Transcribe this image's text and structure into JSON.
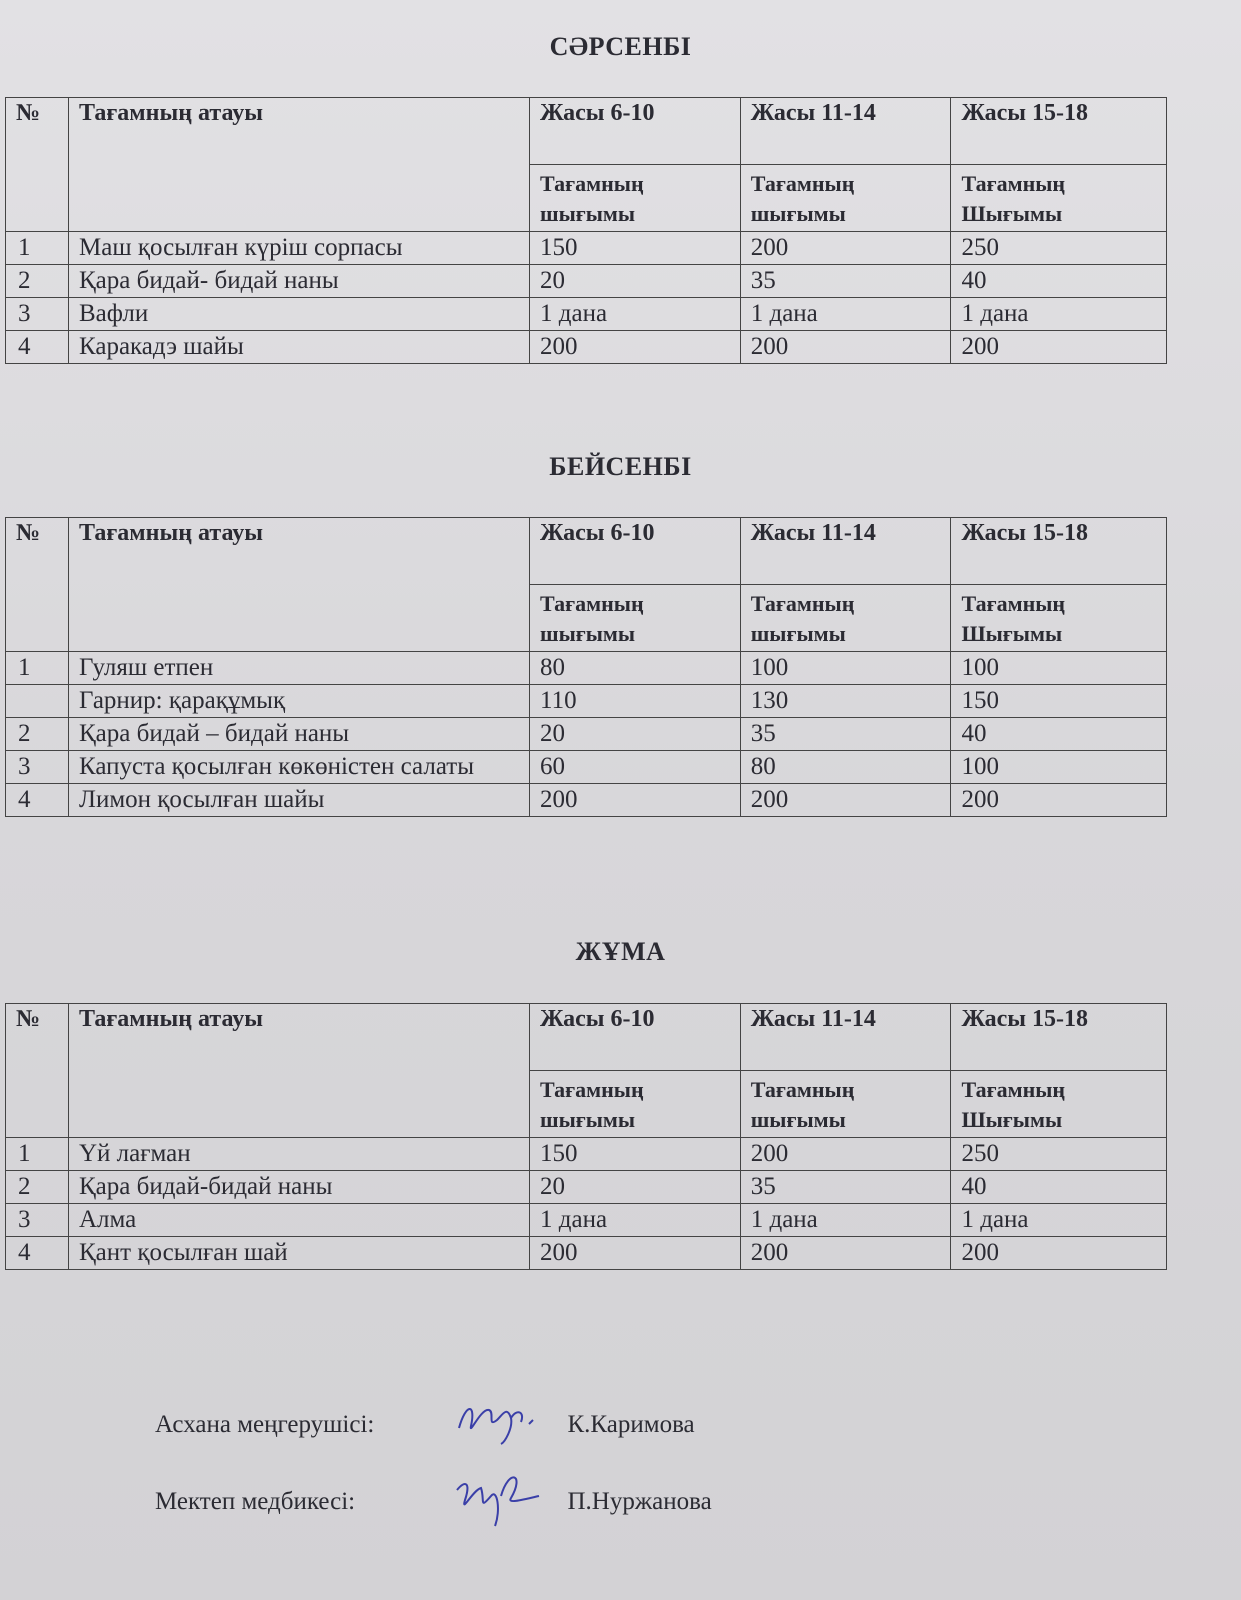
{
  "headers": {
    "number": "№",
    "dish_name": "Тағамның атауы",
    "age_groups": [
      "Жасы 6-10",
      "Жасы 11-14",
      "Жасы 15-18"
    ],
    "yield": [
      "Тағамның шығымы",
      "Тағамның шығымы",
      "Тағамның Шығымы"
    ]
  },
  "days": [
    {
      "title": "СӘРСЕНБІ",
      "rows": [
        {
          "no": "1",
          "name": "Маш қосылған күріш сорпасы",
          "values": [
            "150",
            "200",
            "250"
          ]
        },
        {
          "no": "2",
          "name": "Қара бидай- бидай наны",
          "values": [
            "20",
            "35",
            "40"
          ]
        },
        {
          "no": "3",
          "name": "Вафли",
          "values": [
            "1 дана",
            "1 дана",
            "1 дана"
          ]
        },
        {
          "no": "4",
          "name": "Каракадэ шайы",
          "values": [
            "200",
            "200",
            "200"
          ]
        }
      ]
    },
    {
      "title": "БЕЙСЕНБІ",
      "rows": [
        {
          "no": "1",
          "name": "Гуляш етпен",
          "values": [
            "80",
            "100",
            "100"
          ]
        },
        {
          "no": "",
          "name": "Гарнир: қарақұмық",
          "values": [
            "110",
            "130",
            "150"
          ]
        },
        {
          "no": "2",
          "name": "Қара бидай – бидай наны",
          "values": [
            "20",
            "35",
            "40"
          ]
        },
        {
          "no": "3",
          "name": "Капуста қосылған көкөністен салаты",
          "values": [
            "60",
            "80",
            "100"
          ]
        },
        {
          "no": "4",
          "name": "Лимон қосылған шайы",
          "values": [
            "200",
            "200",
            "200"
          ]
        }
      ]
    },
    {
      "title": "ЖҰМА",
      "rows": [
        {
          "no": "1",
          "name": "Үй лағман",
          "values": [
            "150",
            "200",
            "250"
          ]
        },
        {
          "no": "2",
          "name": "Қара бидай-бидай наны",
          "values": [
            "20",
            "35",
            "40"
          ]
        },
        {
          "no": "3",
          "name": "Алма",
          "values": [
            "1 дана",
            "1 дана",
            "1 дана"
          ]
        },
        {
          "no": "4",
          "name": "Қант қосылған шай",
          "values": [
            "200",
            "200",
            "200"
          ]
        }
      ]
    }
  ],
  "signatures": [
    {
      "role": "Асхана меңгерушісі:",
      "name": "К.Каримова",
      "signature_text": "Жбр"
    },
    {
      "role": "Мектеп медбикесі:",
      "name": "П.Нуржанова",
      "signature_text": "Нур"
    }
  ],
  "colors": {
    "ink": "#2b2b33",
    "signature_ink": "#3a3fa8",
    "paper": "#dad9dc"
  }
}
